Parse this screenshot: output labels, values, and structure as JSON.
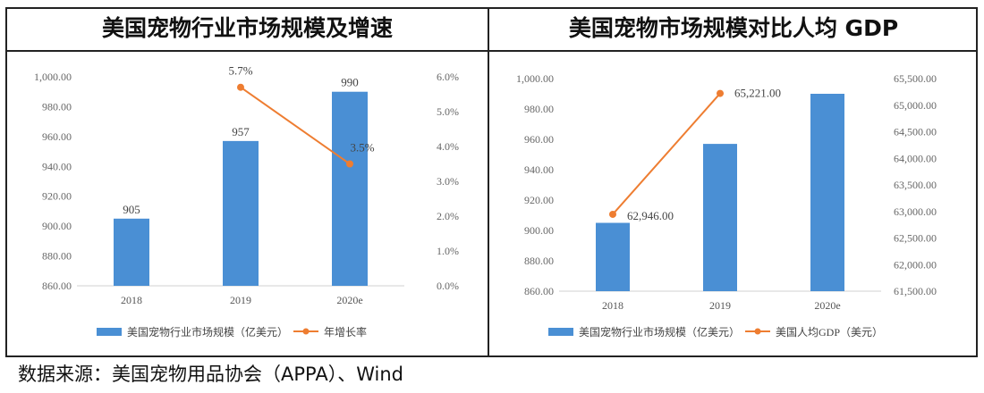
{
  "source_note": "数据来源：美国宠物用品协会（APPA）、Wind",
  "chart_data": [
    {
      "type": "bar",
      "title": "美国宠物行业市场规模及增速",
      "categories": [
        "2018",
        "2019",
        "2020e"
      ],
      "series": [
        {
          "name": "美国宠物行业市场规模（亿美元）",
          "type": "bar",
          "axis": "left",
          "values": [
            905,
            957,
            990
          ],
          "labels": [
            "905",
            "957",
            "990"
          ],
          "color": "#4a8fd4"
        },
        {
          "name": "年增长率",
          "type": "line",
          "axis": "right",
          "values": [
            null,
            5.7,
            3.5
          ],
          "labels": [
            "",
            "5.7%",
            "3.5%"
          ],
          "color": "#ee7d31"
        }
      ],
      "y_left": {
        "min": 860,
        "max": 1000,
        "step": 20,
        "ticks": [
          "860.00",
          "880.00",
          "900.00",
          "920.00",
          "940.00",
          "960.00",
          "980.00",
          "1,000.00"
        ]
      },
      "y_right": {
        "min": 0,
        "max": 6,
        "step": 1,
        "ticks": [
          "0.0%",
          "1.0%",
          "2.0%",
          "3.0%",
          "4.0%",
          "5.0%",
          "6.0%"
        ]
      },
      "legend": "bottom"
    },
    {
      "type": "bar",
      "title": "美国宠物市场规模对比人均 GDP",
      "categories": [
        "2018",
        "2019",
        "2020e"
      ],
      "series": [
        {
          "name": "美国宠物行业市场规模（亿美元）",
          "type": "bar",
          "axis": "left",
          "values": [
            905,
            957,
            990
          ],
          "labels": [
            "",
            "",
            ""
          ],
          "color": "#4a8fd4"
        },
        {
          "name": "美国人均GDP（美元）",
          "type": "line",
          "axis": "right",
          "values": [
            62946,
            65221,
            null
          ],
          "labels": [
            "62,946.00",
            "65,221.00",
            ""
          ],
          "color": "#ee7d31"
        }
      ],
      "y_left": {
        "min": 860,
        "max": 1000,
        "step": 20,
        "ticks": [
          "860.00",
          "880.00",
          "900.00",
          "920.00",
          "940.00",
          "960.00",
          "980.00",
          "1,000.00"
        ]
      },
      "y_right": {
        "min": 61500,
        "max": 65500,
        "step": 500,
        "ticks": [
          "61,500.00",
          "62,000.00",
          "62,500.00",
          "63,000.00",
          "63,500.00",
          "64,000.00",
          "64,500.00",
          "65,000.00",
          "65,500.00"
        ]
      },
      "legend": "bottom"
    }
  ]
}
